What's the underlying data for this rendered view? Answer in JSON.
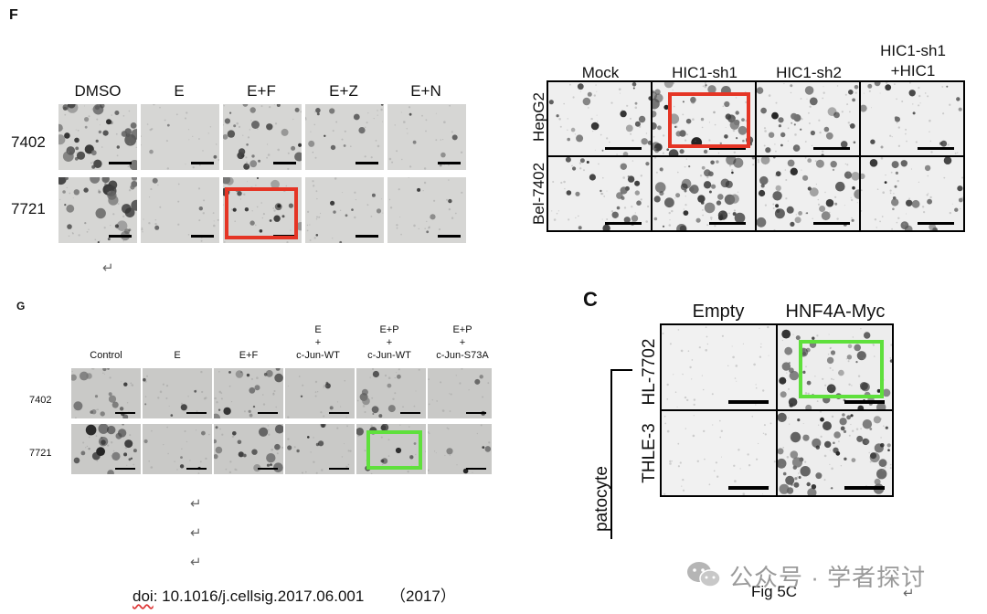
{
  "panelF": {
    "letter": "F",
    "columns": [
      "DMSO",
      "E",
      "E+F",
      "E+Z",
      "E+N"
    ],
    "rows": [
      "7402",
      "7721"
    ],
    "density": [
      [
        0.7,
        0.05,
        0.45,
        0.2,
        0.1
      ],
      [
        0.65,
        0.05,
        0.4,
        0.15,
        0.08
      ]
    ]
  },
  "panelHIC": {
    "columns": [
      "Mock",
      "HIC1-sh1",
      "HIC1-sh2",
      "HIC1-sh1\n+HIC1"
    ],
    "col4_line1": "HIC1-sh1",
    "col4_line2": "+HIC1",
    "rows": [
      "HepG2",
      "Bel-7402"
    ],
    "density": [
      [
        0.3,
        0.6,
        0.4,
        0.2
      ],
      [
        0.35,
        0.6,
        0.5,
        0.3
      ]
    ]
  },
  "panelG": {
    "letter": "G",
    "columns": [
      "Control",
      "E",
      "E+F",
      "E\n+\nc-Jun-WT",
      "E+P\n+\nc-Jun-WT",
      "E+P\n+\nc-Jun-S73A"
    ],
    "col4": [
      "E",
      "+",
      "c-Jun-WT"
    ],
    "col5": [
      "E+P",
      "+",
      "c-Jun-WT"
    ],
    "col6": [
      "E+P",
      "+",
      "c-Jun-S73A"
    ],
    "rows": [
      "7402",
      "7721"
    ],
    "density": [
      [
        0.5,
        0.15,
        0.45,
        0.12,
        0.3,
        0.1
      ],
      [
        0.6,
        0.15,
        0.5,
        0.2,
        0.3,
        0.12
      ]
    ]
  },
  "panelC": {
    "letter": "C",
    "columns": [
      "Empty",
      "HNF4A-Myc"
    ],
    "rows": [
      "HL-7702",
      "THLE-3"
    ],
    "group_label": "patocyte",
    "density": [
      [
        0.0,
        0.5
      ],
      [
        0.0,
        0.6
      ]
    ]
  },
  "footer": {
    "doi_prefix": "doi",
    "doi_rest": ": 10.1016/j.cellsig.2017.06.001",
    "year": "（2017）",
    "fig_caption": "Fig 5C",
    "return_mark": "↵"
  },
  "watermark": {
    "text": "公众号 · 学者探讨"
  },
  "colors": {
    "highlight_red": "#e53525",
    "highlight_green": "#5fe03c"
  }
}
